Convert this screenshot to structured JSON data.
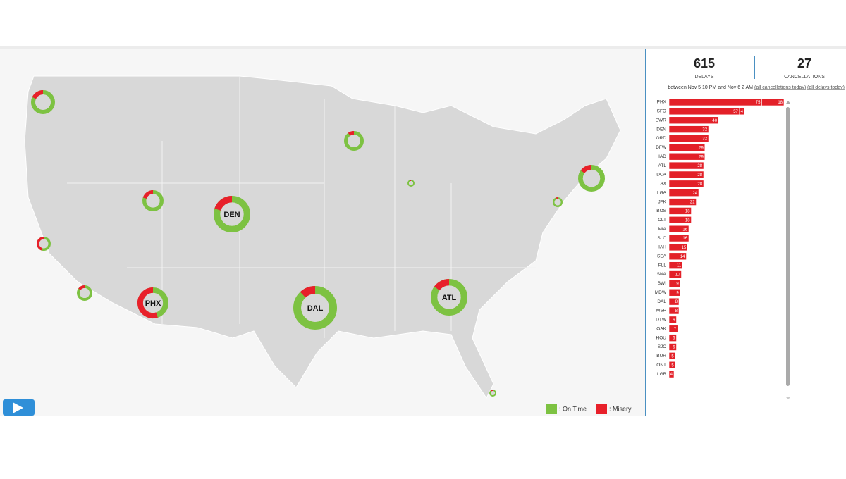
{
  "stats": {
    "delays": {
      "value": 615,
      "label": "DELAYS"
    },
    "cancellations": {
      "value": 27,
      "label": "CANCELLATIONS"
    },
    "range_text": "between Nov 5 10 PM and Nov 6 2 AM",
    "links": [
      "(all cancellations today)",
      "(all delays today)"
    ]
  },
  "map": {
    "legend": [
      {
        "name": ": On Time",
        "color": "#7dc242"
      },
      {
        "name": ": Misery",
        "color": "#e8202a"
      }
    ],
    "airports": [
      {
        "label": null,
        "misery_share": 18
      },
      {
        "label": null,
        "misery_share": 10
      },
      {
        "label": null,
        "misery_share": 20
      },
      {
        "label": "DEN",
        "misery_share": 20
      },
      {
        "label": null,
        "misery_share": 45
      },
      {
        "label": null,
        "misery_share": 5
      },
      {
        "label": null,
        "misery_share": 15
      },
      {
        "label": null,
        "misery_share": 5
      },
      {
        "label": null,
        "misery_share": 15
      },
      {
        "label": "PHX",
        "misery_share": 55
      },
      {
        "label": "DAL",
        "misery_share": 12
      },
      {
        "label": "ATL",
        "misery_share": 15
      },
      {
        "label": null,
        "misery_share": 10
      }
    ]
  },
  "chart_data": {
    "type": "bar",
    "orientation": "horizontal",
    "categories": [
      "PHX",
      "SFO",
      "EWR",
      "DEN",
      "ORD",
      "DFW",
      "IAD",
      "ATL",
      "DCA",
      "LAX",
      "LGA",
      "JFK",
      "BOS",
      "CLT",
      "MIA",
      "SLC",
      "IAH",
      "SEA",
      "FLL",
      "SNA",
      "BWI",
      "MDW",
      "DAL",
      "MSP",
      "DTW",
      "OAK",
      "HOU",
      "SJC",
      "BUR",
      "ONT",
      "LGB"
    ],
    "series": [
      {
        "color": "#e32028",
        "values": [
          75,
          57,
          40,
          32,
          32,
          29,
          29,
          28,
          28,
          28,
          24,
          22,
          18,
          18,
          16,
          16,
          15,
          14,
          11,
          10,
          9,
          9,
          8,
          8,
          6,
          7,
          6,
          6,
          5,
          5,
          4
        ]
      },
      {
        "color": "#e32028",
        "values": [
          18,
          4,
          null,
          null,
          null,
          null,
          null,
          null,
          null,
          null,
          null,
          null,
          null,
          null,
          null,
          null,
          null,
          null,
          null,
          null,
          null,
          null,
          null,
          null,
          null,
          null,
          null,
          null,
          null,
          null,
          null
        ]
      }
    ]
  }
}
